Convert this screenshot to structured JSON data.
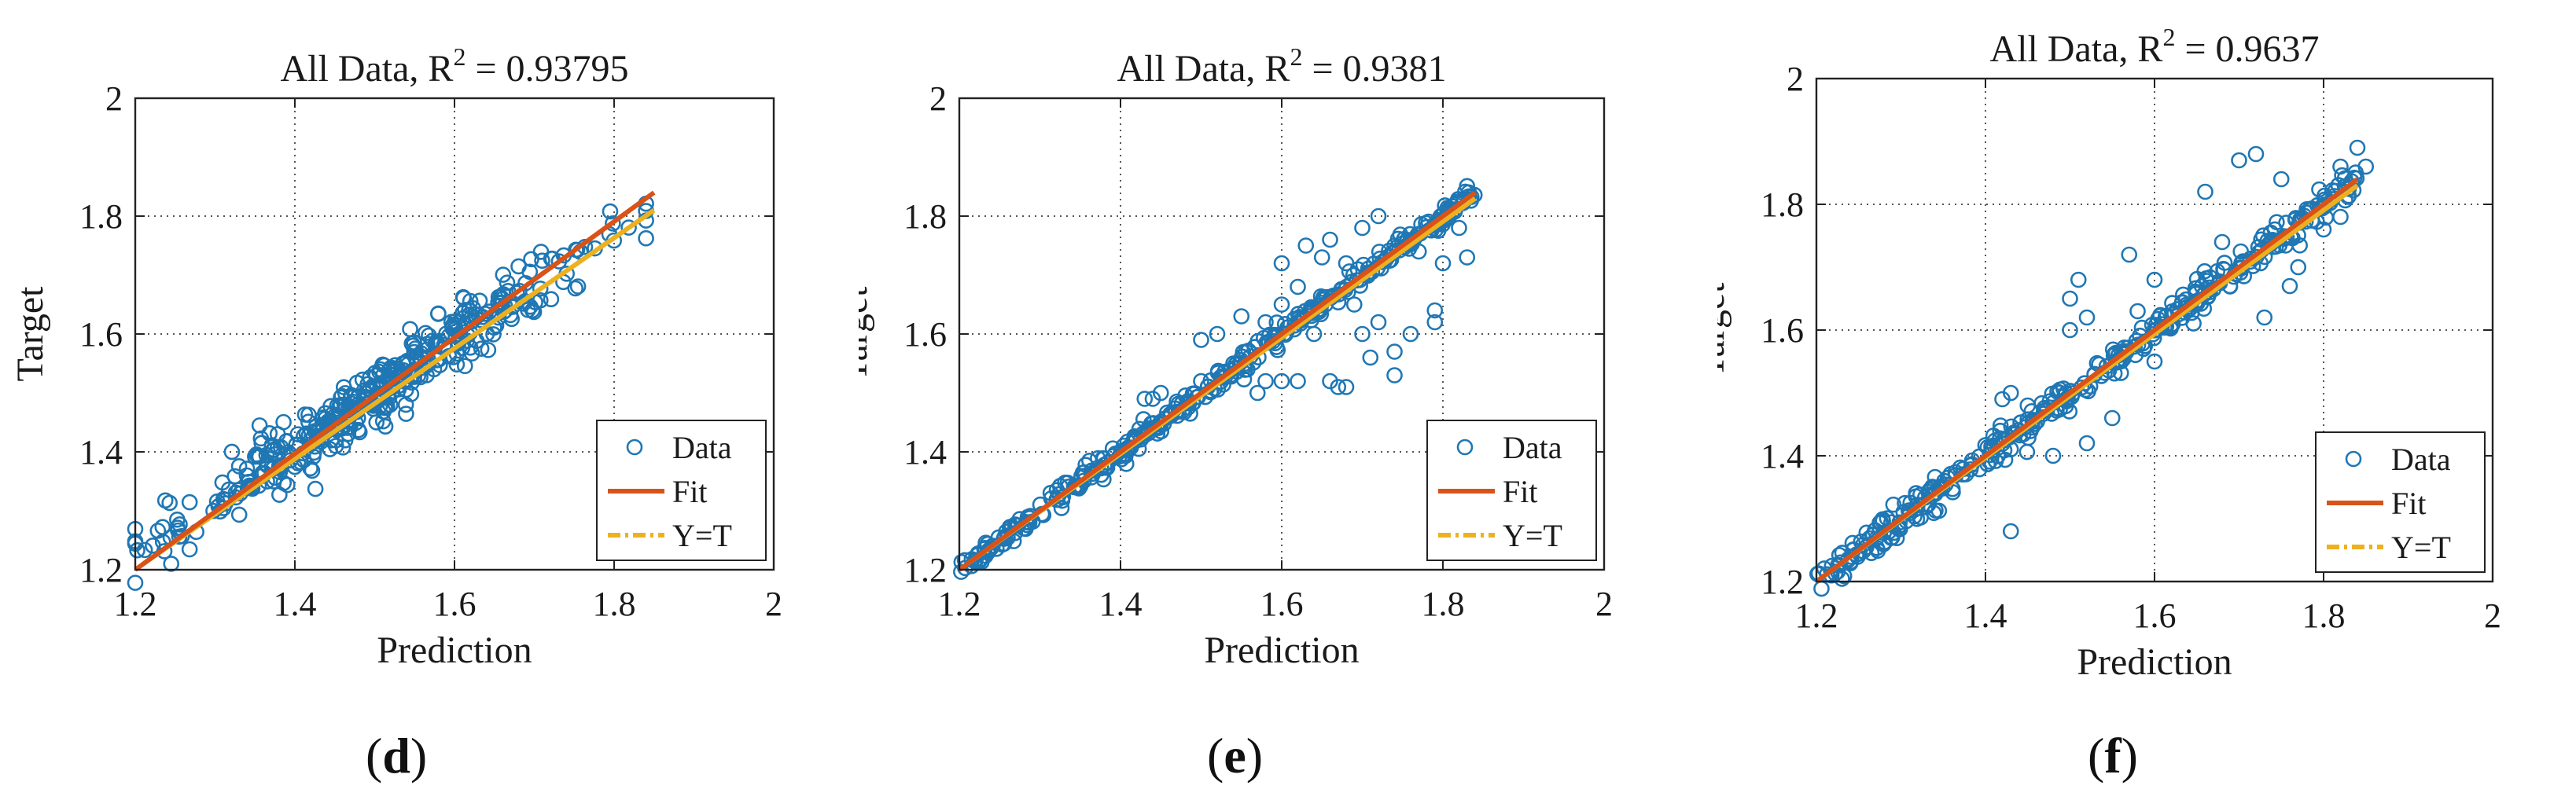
{
  "chart_data": [
    {
      "panel": "d",
      "type": "scatter",
      "title": "All Data, R",
      "title_sup": "2",
      "title_suffix": " = 0.93795",
      "xlabel": "Prediction",
      "ylabel": "Target",
      "xlim": [
        1.2,
        2.0
      ],
      "ylim": [
        1.2,
        2.0
      ],
      "xticks": [
        "1.2",
        "1.4",
        "1.6",
        "1.8",
        "2"
      ],
      "yticks": [
        "1.2",
        "1.4",
        "1.6",
        "1.8",
        "2"
      ],
      "grid": true,
      "legend_position": "bottom-right",
      "legend": [
        "Data",
        "Fit",
        "Y=T"
      ],
      "colors": {
        "data": "#1f77b4",
        "fit": "#d95319",
        "yt": "#edb120"
      },
      "fit_line": {
        "x": [
          1.2,
          1.85
        ],
        "y": [
          1.2,
          1.84
        ]
      },
      "yt_line": {
        "x": [
          1.21,
          1.85
        ],
        "y": [
          1.21,
          1.81
        ]
      },
      "scatter": {
        "n": 420,
        "x_range": [
          1.2,
          1.84
        ],
        "slope": 0.92,
        "intercept": 0.12,
        "noise": 0.028,
        "outliers": []
      },
      "caption": "d"
    },
    {
      "panel": "e",
      "type": "scatter",
      "title": "All Data, R",
      "title_sup": "2",
      "title_suffix": " = 0.9381",
      "xlabel": "Prediction",
      "ylabel": "Target",
      "xlim": [
        1.2,
        2.0
      ],
      "ylim": [
        1.2,
        2.0
      ],
      "xticks": [
        "1.2",
        "1.4",
        "1.6",
        "1.8",
        "2"
      ],
      "yticks": [
        "1.2",
        "1.4",
        "1.6",
        "1.8",
        "2"
      ],
      "grid": true,
      "legend_position": "bottom-right",
      "legend": [
        "Data",
        "Fit",
        "Y=T"
      ],
      "colors": {
        "data": "#1f77b4",
        "fit": "#d95319",
        "yt": "#edb120"
      },
      "fit_line": {
        "x": [
          1.2,
          1.84
        ],
        "y": [
          1.2,
          1.84
        ]
      },
      "yt_line": {
        "x": [
          1.2,
          1.84
        ],
        "y": [
          1.2,
          1.83
        ]
      },
      "scatter": {
        "n": 360,
        "x_range": [
          1.2,
          1.84
        ],
        "slope": 1.0,
        "intercept": 0.0,
        "noise": 0.01,
        "outliers": [
          [
            1.63,
            1.75
          ],
          [
            1.65,
            1.73
          ],
          [
            1.66,
            1.76
          ],
          [
            1.7,
            1.78
          ],
          [
            1.72,
            1.8
          ],
          [
            1.74,
            1.75
          ],
          [
            1.68,
            1.72
          ],
          [
            1.62,
            1.68
          ],
          [
            1.6,
            1.65
          ],
          [
            1.58,
            1.62
          ],
          [
            1.6,
            1.52
          ],
          [
            1.62,
            1.52
          ],
          [
            1.58,
            1.52
          ],
          [
            1.66,
            1.52
          ],
          [
            1.67,
            1.51
          ],
          [
            1.68,
            1.51
          ],
          [
            1.7,
            1.6
          ],
          [
            1.72,
            1.62
          ],
          [
            1.74,
            1.57
          ],
          [
            1.76,
            1.6
          ],
          [
            1.74,
            1.53
          ],
          [
            1.79,
            1.64
          ],
          [
            1.79,
            1.62
          ],
          [
            1.8,
            1.72
          ],
          [
            1.82,
            1.78
          ],
          [
            1.83,
            1.73
          ],
          [
            1.55,
            1.63
          ],
          [
            1.52,
            1.6
          ],
          [
            1.5,
            1.59
          ],
          [
            1.57,
            1.5
          ],
          [
            1.43,
            1.49
          ],
          [
            1.44,
            1.49
          ],
          [
            1.45,
            1.5
          ],
          [
            1.5,
            1.52
          ],
          [
            1.54,
            1.55
          ],
          [
            1.6,
            1.72
          ],
          [
            1.64,
            1.6
          ],
          [
            1.69,
            1.65
          ],
          [
            1.71,
            1.56
          ],
          [
            1.77,
            1.74
          ]
        ]
      },
      "caption": "e"
    },
    {
      "panel": "f",
      "type": "scatter",
      "title": "All Data, R",
      "title_sup": "2",
      "title_suffix": " = 0.9637",
      "xlabel": "Prediction",
      "ylabel": "Target",
      "xlim": [
        1.2,
        2.0
      ],
      "ylim": [
        1.2,
        2.0
      ],
      "xticks": [
        "1.2",
        "1.4",
        "1.6",
        "1.8",
        "2"
      ],
      "yticks": [
        "1.2",
        "1.4",
        "1.6",
        "1.8",
        "2"
      ],
      "grid": true,
      "legend_position": "bottom-right",
      "legend": [
        "Data",
        "Fit",
        "Y=T"
      ],
      "colors": {
        "data": "#1f77b4",
        "fit": "#d95319",
        "yt": "#edb120"
      },
      "fit_line": {
        "x": [
          1.2,
          1.84
        ],
        "y": [
          1.2,
          1.84
        ]
      },
      "yt_line": {
        "x": [
          1.2,
          1.84
        ],
        "y": [
          1.2,
          1.83
        ]
      },
      "scatter": {
        "n": 380,
        "x_range": [
          1.2,
          1.84
        ],
        "slope": 1.0,
        "intercept": 0.0,
        "noise": 0.013,
        "outliers": [
          [
            1.43,
            1.28
          ],
          [
            1.43,
            1.5
          ],
          [
            1.42,
            1.49
          ],
          [
            1.5,
            1.65
          ],
          [
            1.51,
            1.68
          ],
          [
            1.52,
            1.62
          ],
          [
            1.5,
            1.6
          ],
          [
            1.52,
            1.42
          ],
          [
            1.55,
            1.46
          ],
          [
            1.57,
            1.72
          ],
          [
            1.66,
            1.82
          ],
          [
            1.7,
            1.87
          ],
          [
            1.72,
            1.88
          ],
          [
            1.76,
            1.67
          ],
          [
            1.77,
            1.7
          ],
          [
            1.82,
            1.86
          ],
          [
            1.84,
            1.89
          ],
          [
            1.85,
            1.86
          ],
          [
            1.82,
            1.78
          ],
          [
            1.8,
            1.76
          ],
          [
            1.73,
            1.62
          ],
          [
            1.6,
            1.55
          ],
          [
            1.48,
            1.4
          ],
          [
            1.45,
            1.48
          ],
          [
            1.6,
            1.68
          ],
          [
            1.75,
            1.84
          ],
          [
            1.58,
            1.63
          ],
          [
            1.68,
            1.74
          ]
        ]
      },
      "caption": "f"
    }
  ]
}
